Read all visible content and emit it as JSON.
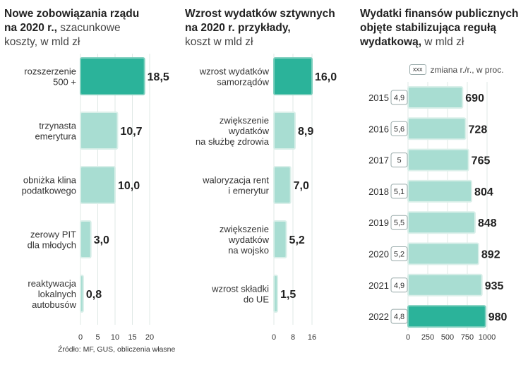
{
  "charts": [
    {
      "title_bold_1": "Nowe zobowiązania rządu",
      "title_bold_2": "na 2020 r.,",
      "title_light_2": " szacunkowe",
      "title_light_3": "koszty, w mld zł"
    },
    {
      "title_bold_1": "Wzrost wydatków sztywnych",
      "title_bold_2": "na 2020 r. przykłady,",
      "title_light_3": "koszt w mld zł"
    },
    {
      "title_bold_1": "Wydatki finansów publicznych",
      "title_bold_2": "objęte stabilizująca regułą",
      "title_bold_3": "wydatkową,",
      "title_light_3": " w mld zł"
    }
  ],
  "legend": {
    "box": "xxx",
    "label": "zmiana r./r., w proc."
  },
  "source": "Źródło: MF, GUS, obliczenia własne",
  "colors": {
    "highlight": "#2bb39a",
    "light": "#a8ddd2",
    "grid": "#dfe8e6",
    "border": "#8fcabe"
  },
  "chart_data": [
    {
      "type": "bar",
      "orientation": "horizontal",
      "categories": [
        [
          "rozszerzenie",
          "500 +"
        ],
        [
          "trzynasta",
          "emerytura"
        ],
        [
          "obniżka klina",
          "podatkowego"
        ],
        [
          "zerowy PIT",
          "dla młodych"
        ],
        [
          "reaktywacja",
          "lokalnych",
          "autobusów"
        ]
      ],
      "values": [
        18.5,
        10.7,
        10.0,
        3.0,
        0.8
      ],
      "value_labels": [
        "18,5",
        "10,7",
        "10,0",
        "3,0",
        "0,8"
      ],
      "highlight": [
        true,
        false,
        false,
        false,
        false
      ],
      "xlim": [
        0,
        20
      ],
      "xticks": [
        0,
        5,
        10,
        15,
        20
      ],
      "xtick_labels": [
        "0",
        "5",
        "10",
        "15",
        "20"
      ]
    },
    {
      "type": "bar",
      "orientation": "horizontal",
      "categories": [
        [
          "wzrost wydatków",
          "samorządów"
        ],
        [
          "zwiększenie",
          "wydatków",
          "na służbę zdrowia"
        ],
        [
          "waloryzacja rent",
          "i emerytur"
        ],
        [
          "zwiększenie",
          "wydatków",
          "na wojsko"
        ],
        [
          "wzrost składki",
          "do UE"
        ]
      ],
      "values": [
        16.0,
        8.9,
        7.0,
        5.2,
        1.5
      ],
      "value_labels": [
        "16,0",
        "8,9",
        "7,0",
        "5,2",
        "1,5"
      ],
      "highlight": [
        true,
        false,
        false,
        false,
        false
      ],
      "xlim": [
        0,
        16
      ],
      "xticks": [
        0,
        8,
        16
      ],
      "xtick_labels": [
        "0",
        "8",
        "16"
      ]
    },
    {
      "type": "bar",
      "orientation": "horizontal",
      "categories": [
        "2015",
        "2016",
        "2017",
        "2018",
        "2019",
        "2020",
        "2021",
        "2022"
      ],
      "values": [
        690,
        728,
        765,
        804,
        848,
        892,
        935,
        980
      ],
      "value_labels": [
        "690",
        "728",
        "765",
        "804",
        "848",
        "892",
        "935",
        "980"
      ],
      "change_labels": [
        "4,9",
        "5,6",
        "5",
        "5,1",
        "5,5",
        "5,2",
        "4,9",
        "4,8"
      ],
      "highlight": [
        false,
        false,
        false,
        false,
        false,
        false,
        false,
        true
      ],
      "xlim": [
        0,
        1000
      ],
      "xticks": [
        0,
        250,
        500,
        750,
        1000
      ],
      "xtick_labels": [
        "0",
        "250",
        "500",
        "750",
        "1000"
      ]
    }
  ]
}
